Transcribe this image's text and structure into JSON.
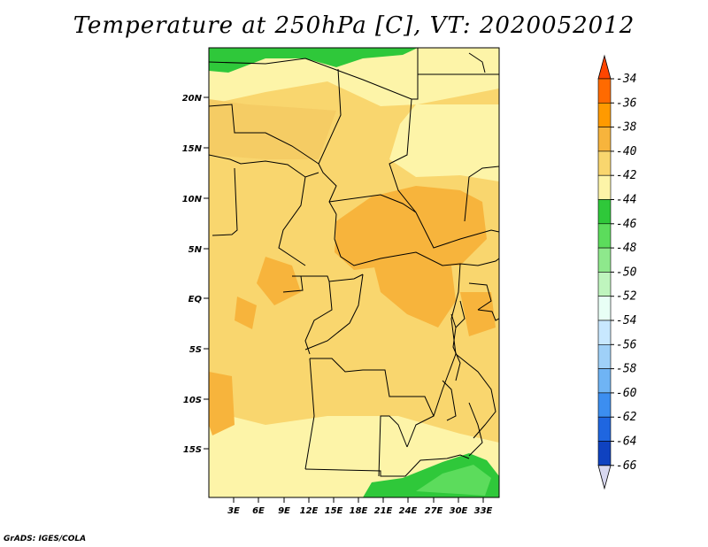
{
  "title": "Temperature at 250hPa [C], VT: 2020052012",
  "credit": "GrADS: IGES/COLA",
  "map": {
    "lat_labels": [
      "20N",
      "15N",
      "10N",
      "5N",
      "EQ",
      "5S",
      "10S",
      "15S"
    ],
    "lon_labels": [
      "3E",
      "6E",
      "9E",
      "12E",
      "15E",
      "18E",
      "21E",
      "24E",
      "27E",
      "30E",
      "33E"
    ]
  },
  "colorbar": {
    "labels": [
      "-34",
      "-36",
      "-38",
      "-40",
      "-42",
      "-44",
      "-46",
      "-48",
      "-50",
      "-52",
      "-54",
      "-56",
      "-58",
      "-60",
      "-62",
      "-64",
      "-66"
    ],
    "colors": [
      "#ff4500",
      "#ff6a00",
      "#ff9a00",
      "#f7b43c",
      "#f9d66e",
      "#fdf4a8",
      "#2fc83a",
      "#5cdc5c",
      "#8ee88c",
      "#bff5be",
      "#e8fff5",
      "#c8e8ff",
      "#9fd0f8",
      "#6fb4f4",
      "#3c8ef0",
      "#1f66e0",
      "#0f42c0",
      "#001f80",
      "#d8d8f0"
    ]
  }
}
